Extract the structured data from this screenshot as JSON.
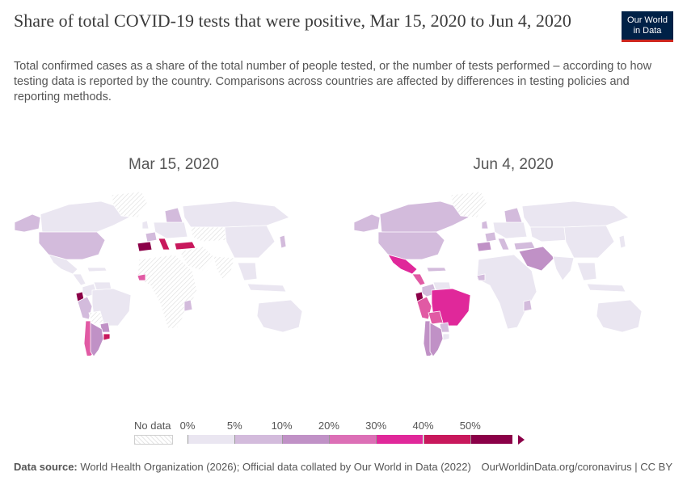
{
  "header": {
    "title": "Share of total COVID-19 tests that were positive, Mar 15, 2020 to Jun 4, 2020",
    "subtitle": "Total confirmed cases as a share of the total number of people tested, or the number of tests performed – according to how testing data is reported by the country. Comparisons across countries are affected by differences in testing policies and reporting methods."
  },
  "logo": {
    "line1": "Our World",
    "line2": "in Data",
    "bg": "#002147",
    "accent": "#ce261e"
  },
  "maps": [
    {
      "label": "Mar 15, 2020",
      "regions": {
        "north_america": "#eae6f1",
        "usa": "#d3bbdc",
        "alaska": "#d3bbdc",
        "greenland": "hatch",
        "mexico": "#eae6f1",
        "central_america": "#eae6f1",
        "caribbean": "#eae6f1",
        "colombia": "#eae6f1",
        "venezuela": "#eae6f1",
        "ecuador": "#8b0048",
        "peru": "#d3bbdc",
        "brazil": "#eae6f1",
        "bolivia": "hatch",
        "paraguay": "#c091c6",
        "chile": "#e15aa4",
        "argentina": "#c091c6",
        "uruguay": "#c8185c",
        "spain": "#8b0048",
        "italy": "#c8185c",
        "france": "#d3bbdc",
        "turkey": "#c8185c",
        "uk": "#eae6f1",
        "scandinavia": "#d3bbdc",
        "europe_rest": "#eae6f1",
        "russia": "#eae6f1",
        "middle_east": "hatch",
        "central_asia": "hatch",
        "china": "#eae6f1",
        "india": "hatch",
        "southeast_asia": "#eae6f1",
        "japan": "#d3bbdc",
        "africa": "hatch",
        "west_africa_pt": "#e15aa4",
        "east_africa_pt": "#d3bbdc",
        "australia": "#eae6f1",
        "indonesia": "#eae6f1"
      }
    },
    {
      "label": "Jun 4, 2020",
      "regions": {
        "north_america": "#d3bbdc",
        "usa": "#d3bbdc",
        "alaska": "#d3bbdc",
        "greenland": "hatch",
        "mexico": "#e0289a",
        "central_america": "#e15aa4",
        "caribbean": "#d3bbdc",
        "colombia": "#d3bbdc",
        "venezuela": "#eae6f1",
        "ecuador": "#8b0048",
        "peru": "#e15aa4",
        "brazil": "#e0289a",
        "bolivia": "#e15aa4",
        "paraguay": "#d3bbdc",
        "chile": "#c091c6",
        "argentina": "#c091c6",
        "uruguay": "#eae6f1",
        "spain": "#c091c6",
        "italy": "#d3bbdc",
        "france": "#d3bbdc",
        "turkey": "#d3bbdc",
        "uk": "#d3bbdc",
        "scandinavia": "#d3bbdc",
        "europe_rest": "#eae6f1",
        "russia": "#eae6f1",
        "middle_east": "#c091c6",
        "central_asia": "#eae6f1",
        "china": "#eae6f1",
        "india": "#eae6f1",
        "southeast_asia": "#eae6f1",
        "japan": "#eae6f1",
        "africa": "#eae6f1",
        "west_africa_pt": "#d3bbdc",
        "east_africa_pt": "#d3bbdc",
        "australia": "#eae6f1",
        "indonesia": "#eae6f1"
      }
    }
  ],
  "legend": {
    "no_data_label": "No data",
    "ticks": [
      "0%",
      "5%",
      "10%",
      "20%",
      "30%",
      "40%",
      "50%"
    ],
    "colors": [
      "#eae6f1",
      "#d3bbdc",
      "#c091c6",
      "#dc6fb6",
      "#e0289a",
      "#c8185c",
      "#8b0048"
    ]
  },
  "footer": {
    "source_label": "Data source:",
    "source_text": "World Health Organization (2026); Official data collated by Our World in Data (2022)",
    "url_text": "OurWorldinData.org/coronavirus | CC BY"
  }
}
